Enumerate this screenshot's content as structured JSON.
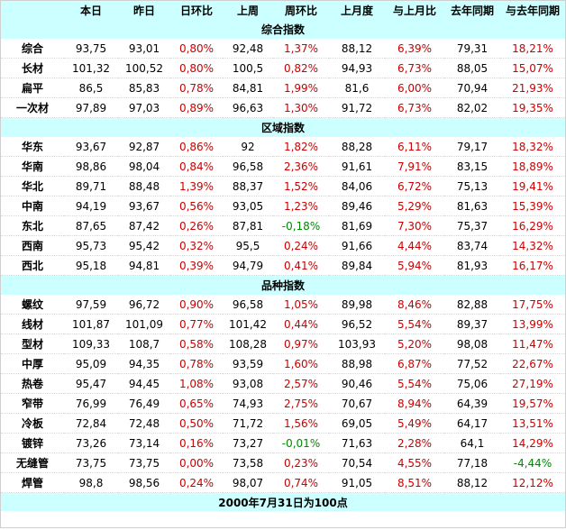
{
  "colors": {
    "header_bg": "#ccffff",
    "up": "#cc0000",
    "down": "#008800"
  },
  "table": {
    "columns": [
      "",
      "本日",
      "昨日",
      "日环比",
      "上周",
      "周环比",
      "上月度",
      "与上月比",
      "去年同期",
      "与去年同期"
    ],
    "sections": [
      {
        "title": "综合指数",
        "rows": [
          [
            "综合",
            "93,75",
            "93,01",
            "0,80%",
            "92,48",
            "1,37%",
            "88,12",
            "6,39%",
            "79,31",
            "18,21%"
          ],
          [
            "长材",
            "101,32",
            "100,52",
            "0,80%",
            "100,5",
            "0,82%",
            "94,93",
            "6,73%",
            "88,05",
            "15,07%"
          ],
          [
            "扁平",
            "86,5",
            "85,83",
            "0,78%",
            "84,81",
            "1,99%",
            "81,6",
            "6,00%",
            "70,94",
            "21,93%"
          ],
          [
            "一次材",
            "97,89",
            "97,03",
            "0,89%",
            "96,63",
            "1,30%",
            "91,72",
            "6,73%",
            "82,02",
            "19,35%"
          ]
        ]
      },
      {
        "title": "区域指数",
        "rows": [
          [
            "华东",
            "93,67",
            "92,87",
            "0,86%",
            "92",
            "1,82%",
            "88,28",
            "6,11%",
            "79,17",
            "18,32%"
          ],
          [
            "华南",
            "98,86",
            "98,04",
            "0,84%",
            "96,58",
            "2,36%",
            "91,61",
            "7,91%",
            "83,15",
            "18,89%"
          ],
          [
            "华北",
            "89,71",
            "88,48",
            "1,39%",
            "88,37",
            "1,52%",
            "84,06",
            "6,72%",
            "75,13",
            "19,41%"
          ],
          [
            "中南",
            "94,19",
            "93,67",
            "0,56%",
            "93,05",
            "1,23%",
            "89,46",
            "5,29%",
            "81,63",
            "15,39%"
          ],
          [
            "东北",
            "87,65",
            "87,42",
            "0,26%",
            "87,81",
            "-0,18%",
            "81,69",
            "7,30%",
            "75,37",
            "16,29%"
          ],
          [
            "西南",
            "95,73",
            "95,42",
            "0,32%",
            "95,5",
            "0,24%",
            "91,66",
            "4,44%",
            "83,74",
            "14,32%"
          ],
          [
            "西北",
            "95,18",
            "94,81",
            "0,39%",
            "94,79",
            "0,41%",
            "89,84",
            "5,94%",
            "81,93",
            "16,17%"
          ]
        ]
      },
      {
        "title": "品种指数",
        "rows": [
          [
            "螺纹",
            "97,59",
            "96,72",
            "0,90%",
            "96,58",
            "1,05%",
            "89,98",
            "8,46%",
            "82,88",
            "17,75%"
          ],
          [
            "线材",
            "101,87",
            "101,09",
            "0,77%",
            "101,42",
            "0,44%",
            "96,52",
            "5,54%",
            "89,37",
            "13,99%"
          ],
          [
            "型材",
            "109,33",
            "108,7",
            "0,58%",
            "108,28",
            "0,97%",
            "103,93",
            "5,20%",
            "98,08",
            "11,47%"
          ],
          [
            "中厚",
            "95,09",
            "94,35",
            "0,78%",
            "93,59",
            "1,60%",
            "88,98",
            "6,87%",
            "77,52",
            "22,67%"
          ],
          [
            "热卷",
            "95,47",
            "94,45",
            "1,08%",
            "93,08",
            "2,57%",
            "90,46",
            "5,54%",
            "75,06",
            "27,19%"
          ],
          [
            "窄带",
            "76,99",
            "76,49",
            "0,65%",
            "74,93",
            "2,75%",
            "70,67",
            "8,94%",
            "64,39",
            "19,57%"
          ],
          [
            "冷板",
            "72,84",
            "72,48",
            "0,50%",
            "71,72",
            "1,56%",
            "69,05",
            "5,49%",
            "64,17",
            "13,51%"
          ],
          [
            "镀锌",
            "73,26",
            "73,14",
            "0,16%",
            "73,27",
            "-0,01%",
            "71,63",
            "2,28%",
            "64,1",
            "14,29%"
          ],
          [
            "无缝管",
            "73,75",
            "73,75",
            "0,00%",
            "73,58",
            "0,23%",
            "70,54",
            "4,55%",
            "77,18",
            "-4,44%"
          ],
          [
            "焊管",
            "98,8",
            "98,56",
            "0,24%",
            "98,07",
            "0,74%",
            "91,05",
            "8,51%",
            "88,12",
            "12,12%"
          ]
        ]
      }
    ],
    "footer": "2000年7月31日为100点"
  }
}
